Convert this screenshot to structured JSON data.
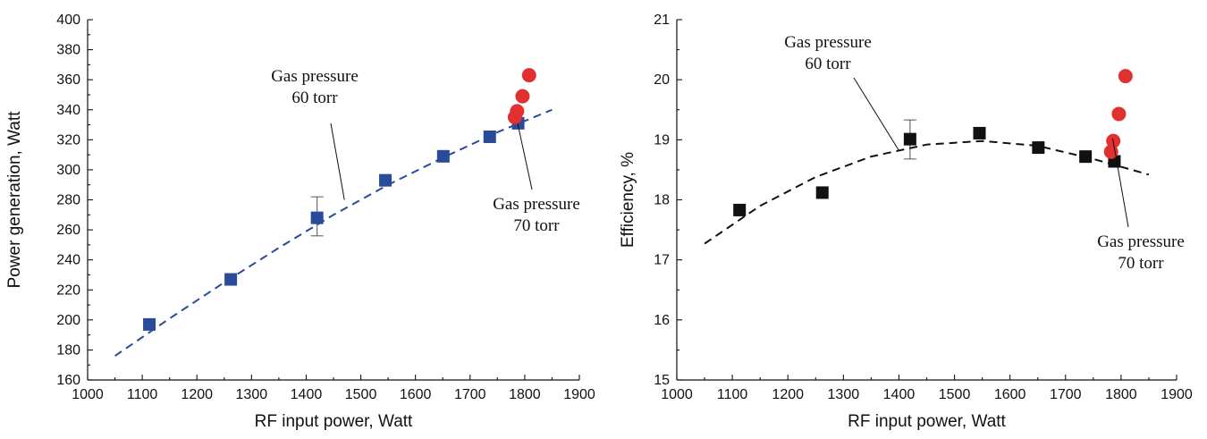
{
  "chart_data": [
    {
      "type": "scatter",
      "xlabel": "RF input power, Watt",
      "ylabel": "Power generation, Watt",
      "xlim": [
        1000,
        1900
      ],
      "ylim": [
        160,
        400
      ],
      "xticks": [
        1000,
        1100,
        1200,
        1300,
        1400,
        1500,
        1600,
        1700,
        1800,
        1900
      ],
      "yticks": [
        160,
        180,
        200,
        220,
        240,
        260,
        280,
        300,
        320,
        340,
        360,
        380,
        400
      ],
      "grid": false,
      "series": [
        {
          "marker": "square",
          "color": "#2a4a9a",
          "x": [
            1113,
            1262,
            1420,
            1545,
            1651,
            1736,
            1788
          ],
          "y": [
            197,
            227,
            268,
            293,
            309,
            322,
            331
          ],
          "error_bars": [
            {
              "x": 1420,
              "y": 268,
              "low": 256,
              "high": 282
            }
          ]
        },
        {
          "marker": "circle",
          "color": "#e03030",
          "x": [
            1782,
            1786,
            1796,
            1808
          ],
          "y": [
            335,
            339,
            349,
            363
          ]
        },
        {
          "style": "dashed-fit",
          "color": "#2a4a9a",
          "x": [
            1050,
            1150,
            1250,
            1350,
            1450,
            1550,
            1650,
            1750,
            1850
          ],
          "y": [
            176,
            201,
            225,
            248,
            270,
            290,
            308,
            325,
            340
          ]
        }
      ],
      "annotations": [
        {
          "lines": [
            "Gas pressure",
            "60 torr"
          ],
          "points_to": {
            "x": 1470,
            "y": 280
          }
        },
        {
          "lines": [
            "Gas pressure",
            "70 torr"
          ],
          "points_to": {
            "x": 1787,
            "y": 331
          }
        }
      ]
    },
    {
      "type": "scatter",
      "xlabel": "RF input power, Watt",
      "ylabel": "Efficiency, %",
      "xlim": [
        1000,
        1900
      ],
      "ylim": [
        15,
        21
      ],
      "xticks": [
        1000,
        1100,
        1200,
        1300,
        1400,
        1500,
        1600,
        1700,
        1800,
        1900
      ],
      "yticks": [
        15,
        16,
        17,
        18,
        19,
        20,
        21
      ],
      "grid": false,
      "series": [
        {
          "marker": "square",
          "color": "#111111",
          "x": [
            1113,
            1262,
            1420,
            1545,
            1651,
            1736,
            1788
          ],
          "y": [
            17.83,
            18.12,
            19.01,
            19.11,
            18.87,
            18.72,
            18.64
          ],
          "error_bars": [
            {
              "x": 1420,
              "y": 19.01,
              "low": 18.68,
              "high": 19.33
            }
          ]
        },
        {
          "marker": "circle",
          "color": "#e03030",
          "x": [
            1782,
            1786,
            1796,
            1808
          ],
          "y": [
            18.8,
            18.98,
            19.43,
            20.06
          ]
        },
        {
          "style": "dashed-fit",
          "color": "#111111",
          "x": [
            1050,
            1150,
            1250,
            1350,
            1450,
            1550,
            1650,
            1750,
            1850
          ],
          "y": [
            17.27,
            17.9,
            18.38,
            18.72,
            18.92,
            18.98,
            18.9,
            18.68,
            18.42
          ]
        }
      ],
      "annotations": [
        {
          "lines": [
            "Gas pressure",
            "60 torr"
          ],
          "points_to": {
            "x": 1400,
            "y": 18.82
          }
        },
        {
          "lines": [
            "Gas pressure",
            "70 torr"
          ],
          "points_to": {
            "x": 1785,
            "y": 19.02
          }
        }
      ]
    }
  ]
}
